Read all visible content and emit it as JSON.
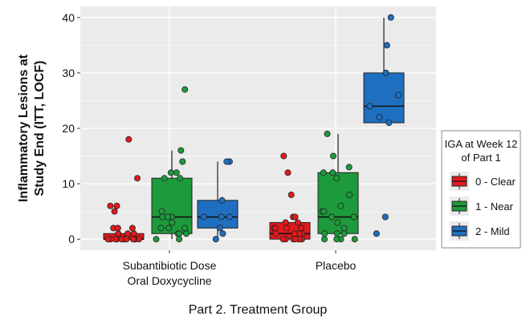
{
  "chart_data": {
    "type": "boxplot",
    "xlabel": "Part 2. Treatment Group",
    "ylabel_lines": [
      "Inflammatory Lesions at",
      "Study End (ITT, LOCF)"
    ],
    "ylim": [
      -2,
      42
    ],
    "yticks": [
      0,
      10,
      20,
      30,
      40
    ],
    "grid": true,
    "categories": [
      {
        "lines": [
          "Subantibiotic Dose",
          "Oral Doxycycline"
        ]
      },
      {
        "lines": [
          "Placebo"
        ]
      }
    ],
    "legend": {
      "title_lines": [
        "IGA at Week 12",
        "of Part 1"
      ],
      "placement": "right",
      "entries": [
        "0 - Clear",
        "1 - Near",
        "2 - Mild"
      ]
    },
    "series": [
      {
        "name": "0 - Clear",
        "color": "#e3191c",
        "boxes": [
          {
            "category": 0,
            "min": 0,
            "q1": 0,
            "median": 0,
            "q3": 1,
            "max": 1
          },
          {
            "category": 1,
            "min": 0,
            "q1": 0,
            "median": 1,
            "q3": 3,
            "max": 3
          }
        ],
        "points": [
          [
            0,
            18
          ],
          [
            0,
            11
          ],
          [
            0,
            6
          ],
          [
            0,
            6
          ],
          [
            0,
            5
          ],
          [
            0,
            2
          ],
          [
            0,
            2
          ],
          [
            0,
            2
          ],
          [
            0,
            1
          ],
          [
            0,
            1
          ],
          [
            0,
            1
          ],
          [
            0,
            0
          ],
          [
            0,
            0
          ],
          [
            0,
            0
          ],
          [
            0,
            0
          ],
          [
            0,
            0
          ],
          [
            0,
            0
          ],
          [
            0,
            0
          ],
          [
            0,
            0
          ],
          [
            0,
            0
          ],
          [
            0,
            0
          ],
          [
            0,
            0
          ],
          [
            0,
            0
          ],
          [
            1,
            15
          ],
          [
            1,
            12
          ],
          [
            1,
            8
          ],
          [
            1,
            4
          ],
          [
            1,
            4
          ],
          [
            1,
            3
          ],
          [
            1,
            3
          ],
          [
            1,
            2
          ],
          [
            1,
            2
          ],
          [
            1,
            2
          ],
          [
            1,
            2
          ],
          [
            1,
            1
          ],
          [
            1,
            1
          ],
          [
            1,
            1
          ],
          [
            1,
            1
          ],
          [
            1,
            0
          ],
          [
            1,
            0
          ],
          [
            1,
            0
          ],
          [
            1,
            0
          ],
          [
            1,
            0
          ],
          [
            1,
            0
          ],
          [
            1,
            0
          ]
        ]
      },
      {
        "name": "1 - Near",
        "color": "#1d9a3b",
        "boxes": [
          {
            "category": 0,
            "min": 0,
            "q1": 1,
            "median": 4,
            "q3": 11,
            "max": 16
          },
          {
            "category": 1,
            "min": 0,
            "q1": 1,
            "median": 4,
            "q3": 12,
            "max": 19
          }
        ],
        "points": [
          [
            0,
            27
          ],
          [
            0,
            16
          ],
          [
            0,
            14
          ],
          [
            0,
            12
          ],
          [
            0,
            12
          ],
          [
            0,
            11
          ],
          [
            0,
            11
          ],
          [
            0,
            5
          ],
          [
            0,
            4
          ],
          [
            0,
            4
          ],
          [
            0,
            4
          ],
          [
            0,
            3
          ],
          [
            0,
            2
          ],
          [
            0,
            2
          ],
          [
            0,
            2
          ],
          [
            0,
            1
          ],
          [
            0,
            1
          ],
          [
            0,
            1
          ],
          [
            0,
            0
          ],
          [
            0,
            0
          ],
          [
            1,
            19
          ],
          [
            1,
            15
          ],
          [
            1,
            13
          ],
          [
            1,
            12
          ],
          [
            1,
            12
          ],
          [
            1,
            11
          ],
          [
            1,
            8
          ],
          [
            1,
            6
          ],
          [
            1,
            5
          ],
          [
            1,
            5
          ],
          [
            1,
            4
          ],
          [
            1,
            4
          ],
          [
            1,
            3
          ],
          [
            1,
            2
          ],
          [
            1,
            1
          ],
          [
            1,
            1
          ],
          [
            1,
            1
          ],
          [
            1,
            0
          ],
          [
            1,
            0
          ],
          [
            1,
            0
          ],
          [
            1,
            0
          ]
        ]
      },
      {
        "name": "2 - Mild",
        "color": "#1f6fc0",
        "boxes": [
          {
            "category": 0,
            "min": 0,
            "q1": 2,
            "median": 4,
            "q3": 7,
            "max": 14
          },
          {
            "category": 1,
            "min": 21,
            "q1": 21,
            "median": 24,
            "q3": 30,
            "max": 40
          }
        ],
        "points": [
          [
            0,
            14
          ],
          [
            0,
            14
          ],
          [
            0,
            7
          ],
          [
            0,
            4
          ],
          [
            0,
            4
          ],
          [
            0,
            4
          ],
          [
            0,
            2
          ],
          [
            0,
            1
          ],
          [
            0,
            0
          ],
          [
            1,
            40
          ],
          [
            1,
            35
          ],
          [
            1,
            30
          ],
          [
            1,
            26
          ],
          [
            1,
            24
          ],
          [
            1,
            22
          ],
          [
            1,
            21
          ],
          [
            1,
            4
          ],
          [
            1,
            1
          ]
        ]
      }
    ]
  }
}
